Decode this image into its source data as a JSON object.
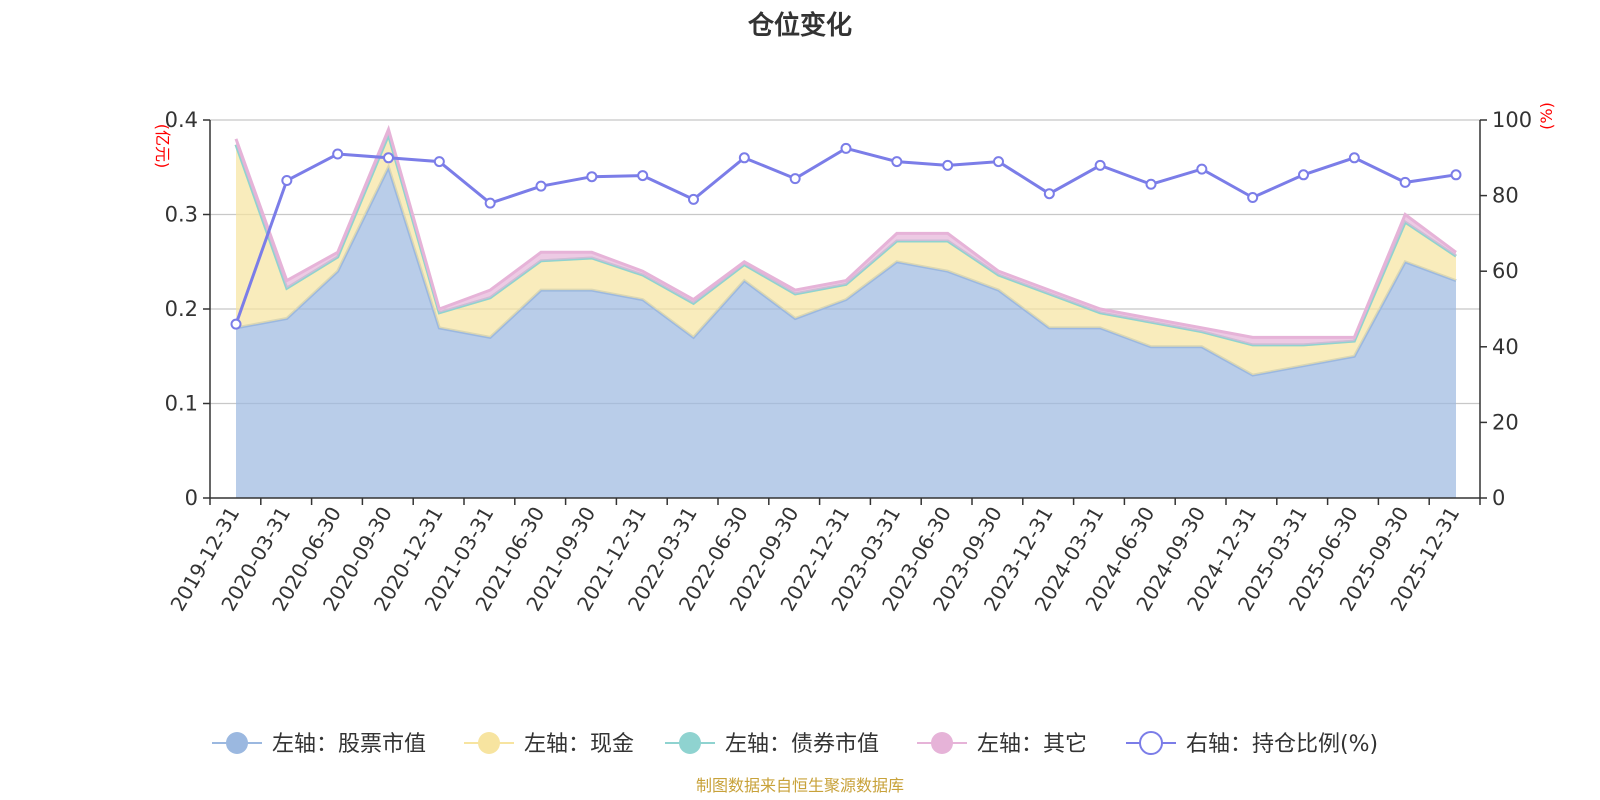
{
  "chart_data": {
    "type": "area",
    "title": "仓位变化",
    "left_axis_unit": "(亿元)",
    "right_axis_unit": "(%)",
    "source": "制图数据来自恒生聚源数据库",
    "x": [
      "2019-12-31",
      "2020-03-31",
      "2020-06-30",
      "2020-09-30",
      "2020-12-31",
      "2021-03-31",
      "2021-06-30",
      "2021-09-30",
      "2021-12-31",
      "2022-03-31",
      "2022-06-30",
      "2022-09-30",
      "2022-12-31",
      "2023-03-31",
      "2023-06-30",
      "2023-09-30",
      "2023-12-31",
      "2024-03-31",
      "2024-06-30",
      "2024-09-30",
      "2024-12-31",
      "2025-03-31",
      "2025-06-30",
      "2025-09-30",
      "2025-12-31"
    ],
    "y_left_ticks": [
      "0",
      "0.1",
      "0.2",
      "0.3",
      "0.4"
    ],
    "y_right_ticks": [
      "0",
      "20",
      "40",
      "60",
      "80",
      "100"
    ],
    "ylim_left": [
      0,
      0.4
    ],
    "ylim_right": [
      0,
      100
    ],
    "grid": true,
    "legend_position": "bottom",
    "series": [
      {
        "name": "左轴：股票市值",
        "color": "#9bb8e0",
        "axis": "left",
        "stack": true,
        "values": [
          0.18,
          0.19,
          0.24,
          0.35,
          0.18,
          0.17,
          0.22,
          0.22,
          0.21,
          0.17,
          0.23,
          0.19,
          0.21,
          0.25,
          0.24,
          0.22,
          0.18,
          0.18,
          0.16,
          0.16,
          0.13,
          0.14,
          0.15,
          0.25,
          0.23
        ]
      },
      {
        "name": "左轴：现金",
        "color": "#f7e4a0",
        "axis": "left",
        "stack": true,
        "values": [
          0.194,
          0.032,
          0.015,
          0.034,
          0.016,
          0.042,
          0.031,
          0.034,
          0.026,
          0.036,
          0.017,
          0.026,
          0.016,
          0.022,
          0.032,
          0.016,
          0.036,
          0.016,
          0.026,
          0.016,
          0.032,
          0.022,
          0.016,
          0.042,
          0.026
        ]
      },
      {
        "name": "左轴：债券市值",
        "color": "#8fd3d0",
        "axis": "left",
        "stack": true,
        "values": [
          0,
          0,
          0,
          0,
          0,
          0,
          0,
          0,
          0,
          0,
          0,
          0,
          0,
          0,
          0,
          0,
          0,
          0,
          0,
          0,
          0,
          0,
          0,
          0,
          0
        ]
      },
      {
        "name": "左轴：其它",
        "color": "#e6b3d8",
        "axis": "left",
        "stack": true,
        "values": [
          0.006,
          0.008,
          0.005,
          0.006,
          0.004,
          0.008,
          0.009,
          0.006,
          0.004,
          0.004,
          0.003,
          0.004,
          0.004,
          0.008,
          0.008,
          0.004,
          0.004,
          0.004,
          0.004,
          0.004,
          0.008,
          0.008,
          0.004,
          0.008,
          0.004
        ]
      },
      {
        "name": "右轴：持仓比例(%)",
        "color": "#7b7de8",
        "axis": "right",
        "type": "line",
        "values": [
          46,
          84,
          91,
          90,
          89,
          78,
          82.5,
          85,
          85.3,
          79,
          90,
          84.5,
          92.5,
          89,
          88,
          89,
          80.5,
          88,
          83,
          87,
          79.5,
          85.5,
          90,
          83.5,
          85.5
        ]
      }
    ]
  }
}
